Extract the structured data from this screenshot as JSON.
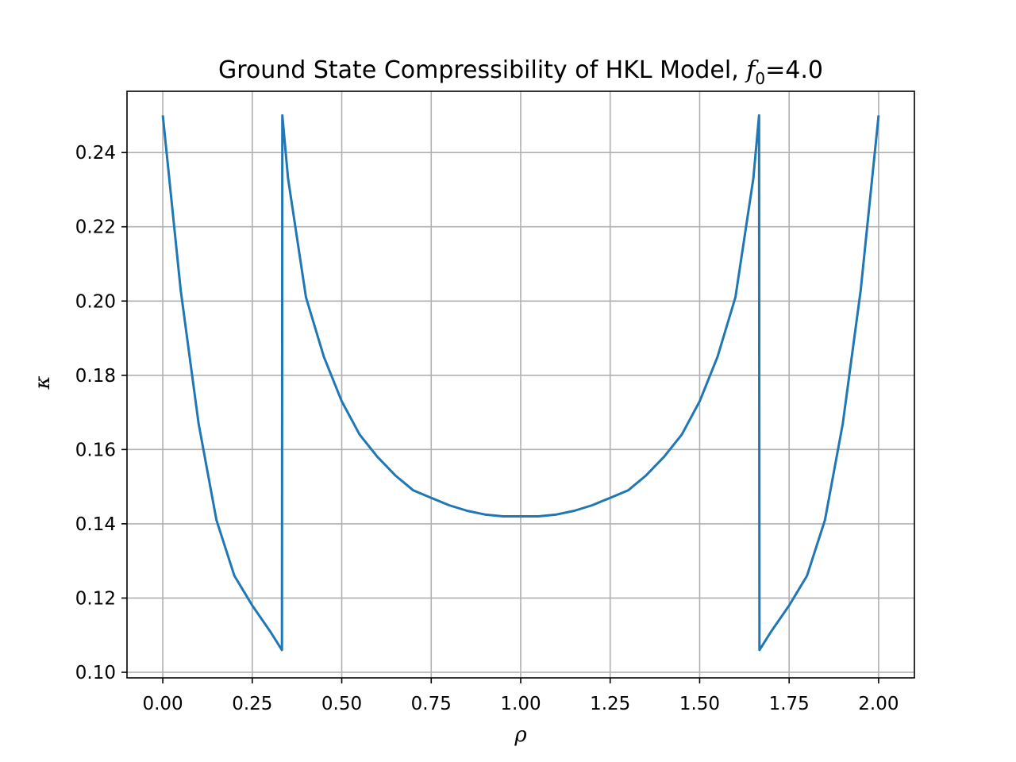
{
  "chart_data": {
    "type": "line",
    "title_parts": {
      "prefix": "Ground State Compressibility of HKL Model, ",
      "var": "f",
      "sub": "0",
      "suffix": "=4.0"
    },
    "xlabel": "ρ",
    "ylabel": "κ",
    "xlim": [
      -0.1,
      2.1
    ],
    "ylim": [
      0.0985,
      0.2565
    ],
    "xticks": [
      "0.00",
      "0.25",
      "0.50",
      "0.75",
      "1.00",
      "1.25",
      "1.50",
      "1.75",
      "2.00"
    ],
    "yticks": [
      "0.10",
      "0.12",
      "0.14",
      "0.16",
      "0.18",
      "0.20",
      "0.22",
      "0.24"
    ],
    "grid": true,
    "legend": "none",
    "series": [
      {
        "color": "#1f77b4",
        "x": [
          0.0,
          0.05,
          0.1,
          0.15,
          0.2,
          0.25,
          0.3,
          0.333,
          0.334,
          0.35,
          0.4,
          0.45,
          0.5,
          0.55,
          0.6,
          0.65,
          0.7,
          0.75,
          0.8,
          0.85,
          0.9,
          0.95,
          1.0,
          1.05,
          1.1,
          1.15,
          1.2,
          1.25,
          1.3,
          1.35,
          1.4,
          1.45,
          1.5,
          1.55,
          1.6,
          1.65,
          1.666,
          1.667,
          1.7,
          1.75,
          1.8,
          1.85,
          1.9,
          1.95,
          2.0
        ],
        "y": [
          0.25,
          0.203,
          0.167,
          0.141,
          0.126,
          0.118,
          0.111,
          0.106,
          0.25,
          0.233,
          0.201,
          0.185,
          0.173,
          0.164,
          0.158,
          0.153,
          0.149,
          0.147,
          0.145,
          0.1435,
          0.1425,
          0.142,
          0.142,
          0.142,
          0.1425,
          0.1435,
          0.145,
          0.147,
          0.149,
          0.153,
          0.158,
          0.164,
          0.173,
          0.185,
          0.201,
          0.233,
          0.25,
          0.106,
          0.111,
          0.118,
          0.126,
          0.141,
          0.167,
          0.203,
          0.25
        ]
      }
    ]
  }
}
